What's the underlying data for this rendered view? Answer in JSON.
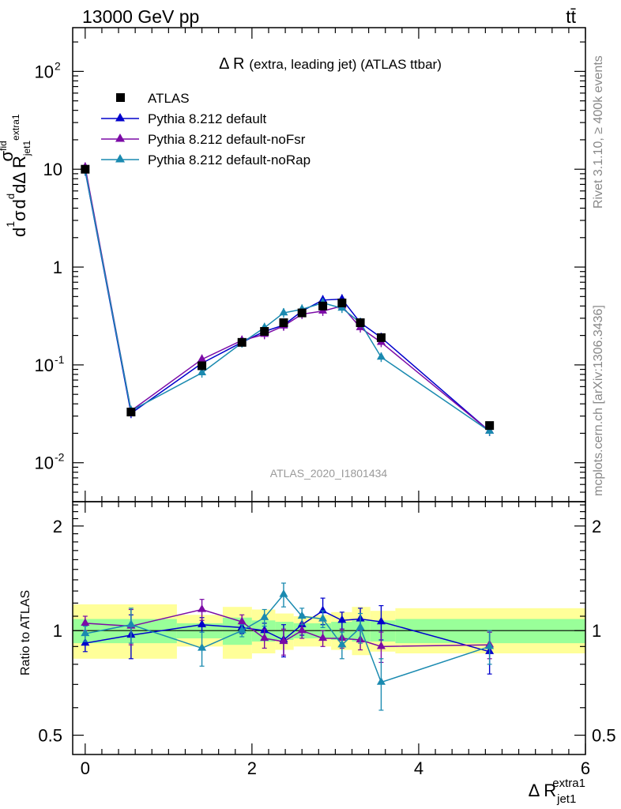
{
  "header": {
    "left": "13000 GeV pp",
    "right": "tt̄"
  },
  "side_labels": {
    "rivet": "Rivet 3.1.10, ≥ 400k events",
    "mcplots": "mcplots.cern.ch [arXiv:1306.3436]"
  },
  "watermark": "ATLAS_2020_I1801434",
  "colors": {
    "data": "#000000",
    "default": "#0000cc",
    "noFsr": "#7b0aa6",
    "noRap": "#1a8ab0",
    "band_inner": "#99ff99",
    "band_outer": "#ffff99"
  },
  "chart_data": [
    {
      "type": "line",
      "panel": "main",
      "title_main": "Δ R",
      "title_rest": "(extra, leading jet) (ATLAS ttbar)",
      "ylabel": "1/σ dσ^fid/dΔ R_jet1^extra1",
      "yscale": "log",
      "ylim": [
        0.004,
        280
      ],
      "xlim": [
        -0.15,
        6.0
      ],
      "ytick_labels": [
        "10^-2",
        "10^-1",
        "1",
        "10",
        "10^2"
      ],
      "legend_position": "top-left",
      "legend": [
        "ATLAS",
        "Pythia 8.212 default",
        "Pythia 8.212 default-noFsr",
        "Pythia 8.212 default-noRap"
      ],
      "data": {
        "name": "ATLAS",
        "x": [
          0.0,
          0.55,
          1.4,
          1.88,
          2.15,
          2.38,
          2.6,
          2.85,
          3.08,
          3.3,
          3.55,
          4.85
        ],
        "y": [
          10.0,
          0.033,
          0.098,
          0.17,
          0.22,
          0.27,
          0.34,
          0.4,
          0.43,
          0.27,
          0.19,
          0.024
        ]
      },
      "series": [
        {
          "name": "Pythia 8.212 default",
          "color_key": "default",
          "x": [
            0.0,
            0.55,
            1.4,
            1.88,
            2.15,
            2.38,
            2.6,
            2.85,
            3.08,
            3.3,
            3.55,
            4.85
          ],
          "y": [
            9.6,
            0.032,
            0.104,
            0.17,
            0.22,
            0.255,
            0.355,
            0.46,
            0.47,
            0.27,
            0.19,
            0.021
          ]
        },
        {
          "name": "Pythia 8.212 default-noFsr",
          "color_key": "noFsr",
          "x": [
            0.0,
            0.55,
            1.4,
            1.88,
            2.15,
            2.38,
            2.6,
            2.85,
            3.08,
            3.3,
            3.55,
            4.85
          ],
          "y": [
            10.5,
            0.034,
            0.114,
            0.178,
            0.205,
            0.25,
            0.33,
            0.355,
            0.4,
            0.24,
            0.17,
            0.021
          ]
        },
        {
          "name": "Pythia 8.212 default-noRap",
          "color_key": "noRap",
          "x": [
            0.0,
            0.55,
            1.4,
            1.88,
            2.15,
            2.38,
            2.6,
            2.85,
            3.08,
            3.3,
            3.55,
            4.85
          ],
          "y": [
            9.7,
            0.034,
            0.083,
            0.168,
            0.24,
            0.34,
            0.37,
            0.43,
            0.38,
            0.27,
            0.12,
            0.021
          ]
        }
      ]
    },
    {
      "type": "line",
      "panel": "ratio",
      "ylabel": "Ratio to ATLAS",
      "xlabel": "Δ R_jet1^extra1",
      "yscale": "log",
      "ylim": [
        0.44,
        2.35
      ],
      "xlim": [
        -0.15,
        6.0
      ],
      "xticks": [
        0,
        2,
        4,
        6
      ],
      "ytick_labels": [
        "0.5",
        "1",
        "2"
      ],
      "bands": [
        {
          "x0": -0.15,
          "x1": 1.1,
          "inner": [
            0.92,
            1.08
          ],
          "outer": [
            0.83,
            1.19
          ]
        },
        {
          "x0": 1.1,
          "x1": 1.65,
          "inner": [
            0.95,
            1.05
          ],
          "outer": [
            0.9,
            1.11
          ]
        },
        {
          "x0": 1.65,
          "x1": 2.0,
          "inner": [
            0.91,
            1.09
          ],
          "outer": [
            0.83,
            1.17
          ]
        },
        {
          "x0": 2.0,
          "x1": 2.28,
          "inner": [
            0.93,
            1.07
          ],
          "outer": [
            0.86,
            1.15
          ]
        },
        {
          "x0": 2.28,
          "x1": 2.5,
          "inner": [
            0.94,
            1.06
          ],
          "outer": [
            0.88,
            1.12
          ]
        },
        {
          "x0": 2.5,
          "x1": 2.75,
          "inner": [
            0.95,
            1.05
          ],
          "outer": [
            0.9,
            1.1
          ]
        },
        {
          "x0": 2.75,
          "x1": 2.95,
          "inner": [
            0.95,
            1.05
          ],
          "outer": [
            0.9,
            1.11
          ]
        },
        {
          "x0": 2.95,
          "x1": 3.2,
          "inner": [
            0.94,
            1.06
          ],
          "outer": [
            0.88,
            1.13
          ]
        },
        {
          "x0": 3.2,
          "x1": 3.42,
          "inner": [
            0.93,
            1.07
          ],
          "outer": [
            0.85,
            1.17
          ]
        },
        {
          "x0": 3.42,
          "x1": 3.72,
          "inner": [
            0.93,
            1.07
          ],
          "outer": [
            0.87,
            1.14
          ]
        },
        {
          "x0": 3.72,
          "x1": 6.0,
          "inner": [
            0.92,
            1.08
          ],
          "outer": [
            0.86,
            1.16
          ]
        }
      ],
      "series": [
        {
          "name": "Pythia 8.212 default",
          "color_key": "default",
          "x": [
            0.0,
            0.55,
            1.4,
            1.88,
            2.15,
            2.38,
            2.6,
            2.85,
            3.08,
            3.3,
            3.55,
            4.85
          ],
          "y": [
            0.92,
            0.97,
            1.04,
            1.02,
            1.0,
            0.94,
            1.04,
            1.14,
            1.07,
            1.08,
            1.06,
            0.87
          ],
          "err": [
            0.05,
            0.14,
            0.05,
            0.04,
            0.05,
            0.1,
            0.07,
            0.1,
            0.06,
            0.08,
            0.12,
            0.12
          ]
        },
        {
          "name": "Pythia 8.212 default-noFsr",
          "color_key": "noFsr",
          "x": [
            0.0,
            0.55,
            1.4,
            1.88,
            2.15,
            2.38,
            2.6,
            2.85,
            3.08,
            3.3,
            3.55,
            4.85
          ],
          "y": [
            1.05,
            1.03,
            1.15,
            1.06,
            0.95,
            0.93,
            1.0,
            0.95,
            0.95,
            0.94,
            0.9,
            0.91
          ],
          "err": [
            0.05,
            0.12,
            0.08,
            0.05,
            0.06,
            0.08,
            0.05,
            0.05,
            0.06,
            0.06,
            0.09,
            0.08
          ]
        },
        {
          "name": "Pythia 8.212 default-noRap",
          "color_key": "noRap",
          "x": [
            0.0,
            0.55,
            1.4,
            1.88,
            2.15,
            2.38,
            2.6,
            2.85,
            3.08,
            3.3,
            3.55,
            4.85
          ],
          "y": [
            0.98,
            1.04,
            0.89,
            1.0,
            1.09,
            1.27,
            1.1,
            1.08,
            0.91,
            1.02,
            0.71,
            0.9
          ],
          "err": [
            0.05,
            0.12,
            0.1,
            0.04,
            0.06,
            0.1,
            0.06,
            0.06,
            0.08,
            0.1,
            0.12,
            0.1
          ]
        }
      ]
    }
  ]
}
